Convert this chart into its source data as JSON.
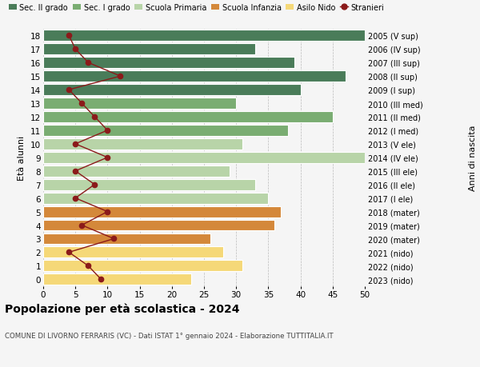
{
  "ages": [
    18,
    17,
    16,
    15,
    14,
    13,
    12,
    11,
    10,
    9,
    8,
    7,
    6,
    5,
    4,
    3,
    2,
    1,
    0
  ],
  "years": [
    "2005 (V sup)",
    "2006 (IV sup)",
    "2007 (III sup)",
    "2008 (II sup)",
    "2009 (I sup)",
    "2010 (III med)",
    "2011 (II med)",
    "2012 (I med)",
    "2013 (V ele)",
    "2014 (IV ele)",
    "2015 (III ele)",
    "2016 (II ele)",
    "2017 (I ele)",
    "2018 (mater)",
    "2019 (mater)",
    "2020 (mater)",
    "2021 (nido)",
    "2022 (nido)",
    "2023 (nido)"
  ],
  "bar_values": [
    50,
    33,
    39,
    47,
    40,
    30,
    45,
    38,
    31,
    50,
    29,
    33,
    35,
    37,
    36,
    26,
    28,
    31,
    23
  ],
  "stranieri": [
    4,
    5,
    7,
    12,
    4,
    6,
    8,
    10,
    5,
    10,
    5,
    8,
    5,
    10,
    6,
    11,
    4,
    7,
    9
  ],
  "bar_colors": [
    "#4a7c59",
    "#4a7c59",
    "#4a7c59",
    "#4a7c59",
    "#4a7c59",
    "#7aad72",
    "#7aad72",
    "#7aad72",
    "#b8d4a8",
    "#b8d4a8",
    "#b8d4a8",
    "#b8d4a8",
    "#b8d4a8",
    "#d4883a",
    "#d4883a",
    "#d4883a",
    "#f5d878",
    "#f5d878",
    "#f5d878"
  ],
  "sec2_color": "#4a7c59",
  "sec1_color": "#7aad72",
  "prim_color": "#b8d4a8",
  "inf_color": "#d4883a",
  "nido_color": "#f5d878",
  "stranieri_color": "#8b1a1a",
  "bg_color": "#f5f5f5",
  "title": "Popolazione per età scolastica - 2024",
  "subtitle": "COMUNE DI LIVORNO FERRARIS (VC) - Dati ISTAT 1° gennaio 2024 - Elaborazione TUTTITALIA.IT",
  "ylabel_left": "Età alunni",
  "ylabel_right": "Anni di nascita",
  "xlim": [
    0,
    50
  ],
  "xticks": [
    0,
    5,
    10,
    15,
    20,
    25,
    30,
    35,
    40,
    45,
    50
  ]
}
